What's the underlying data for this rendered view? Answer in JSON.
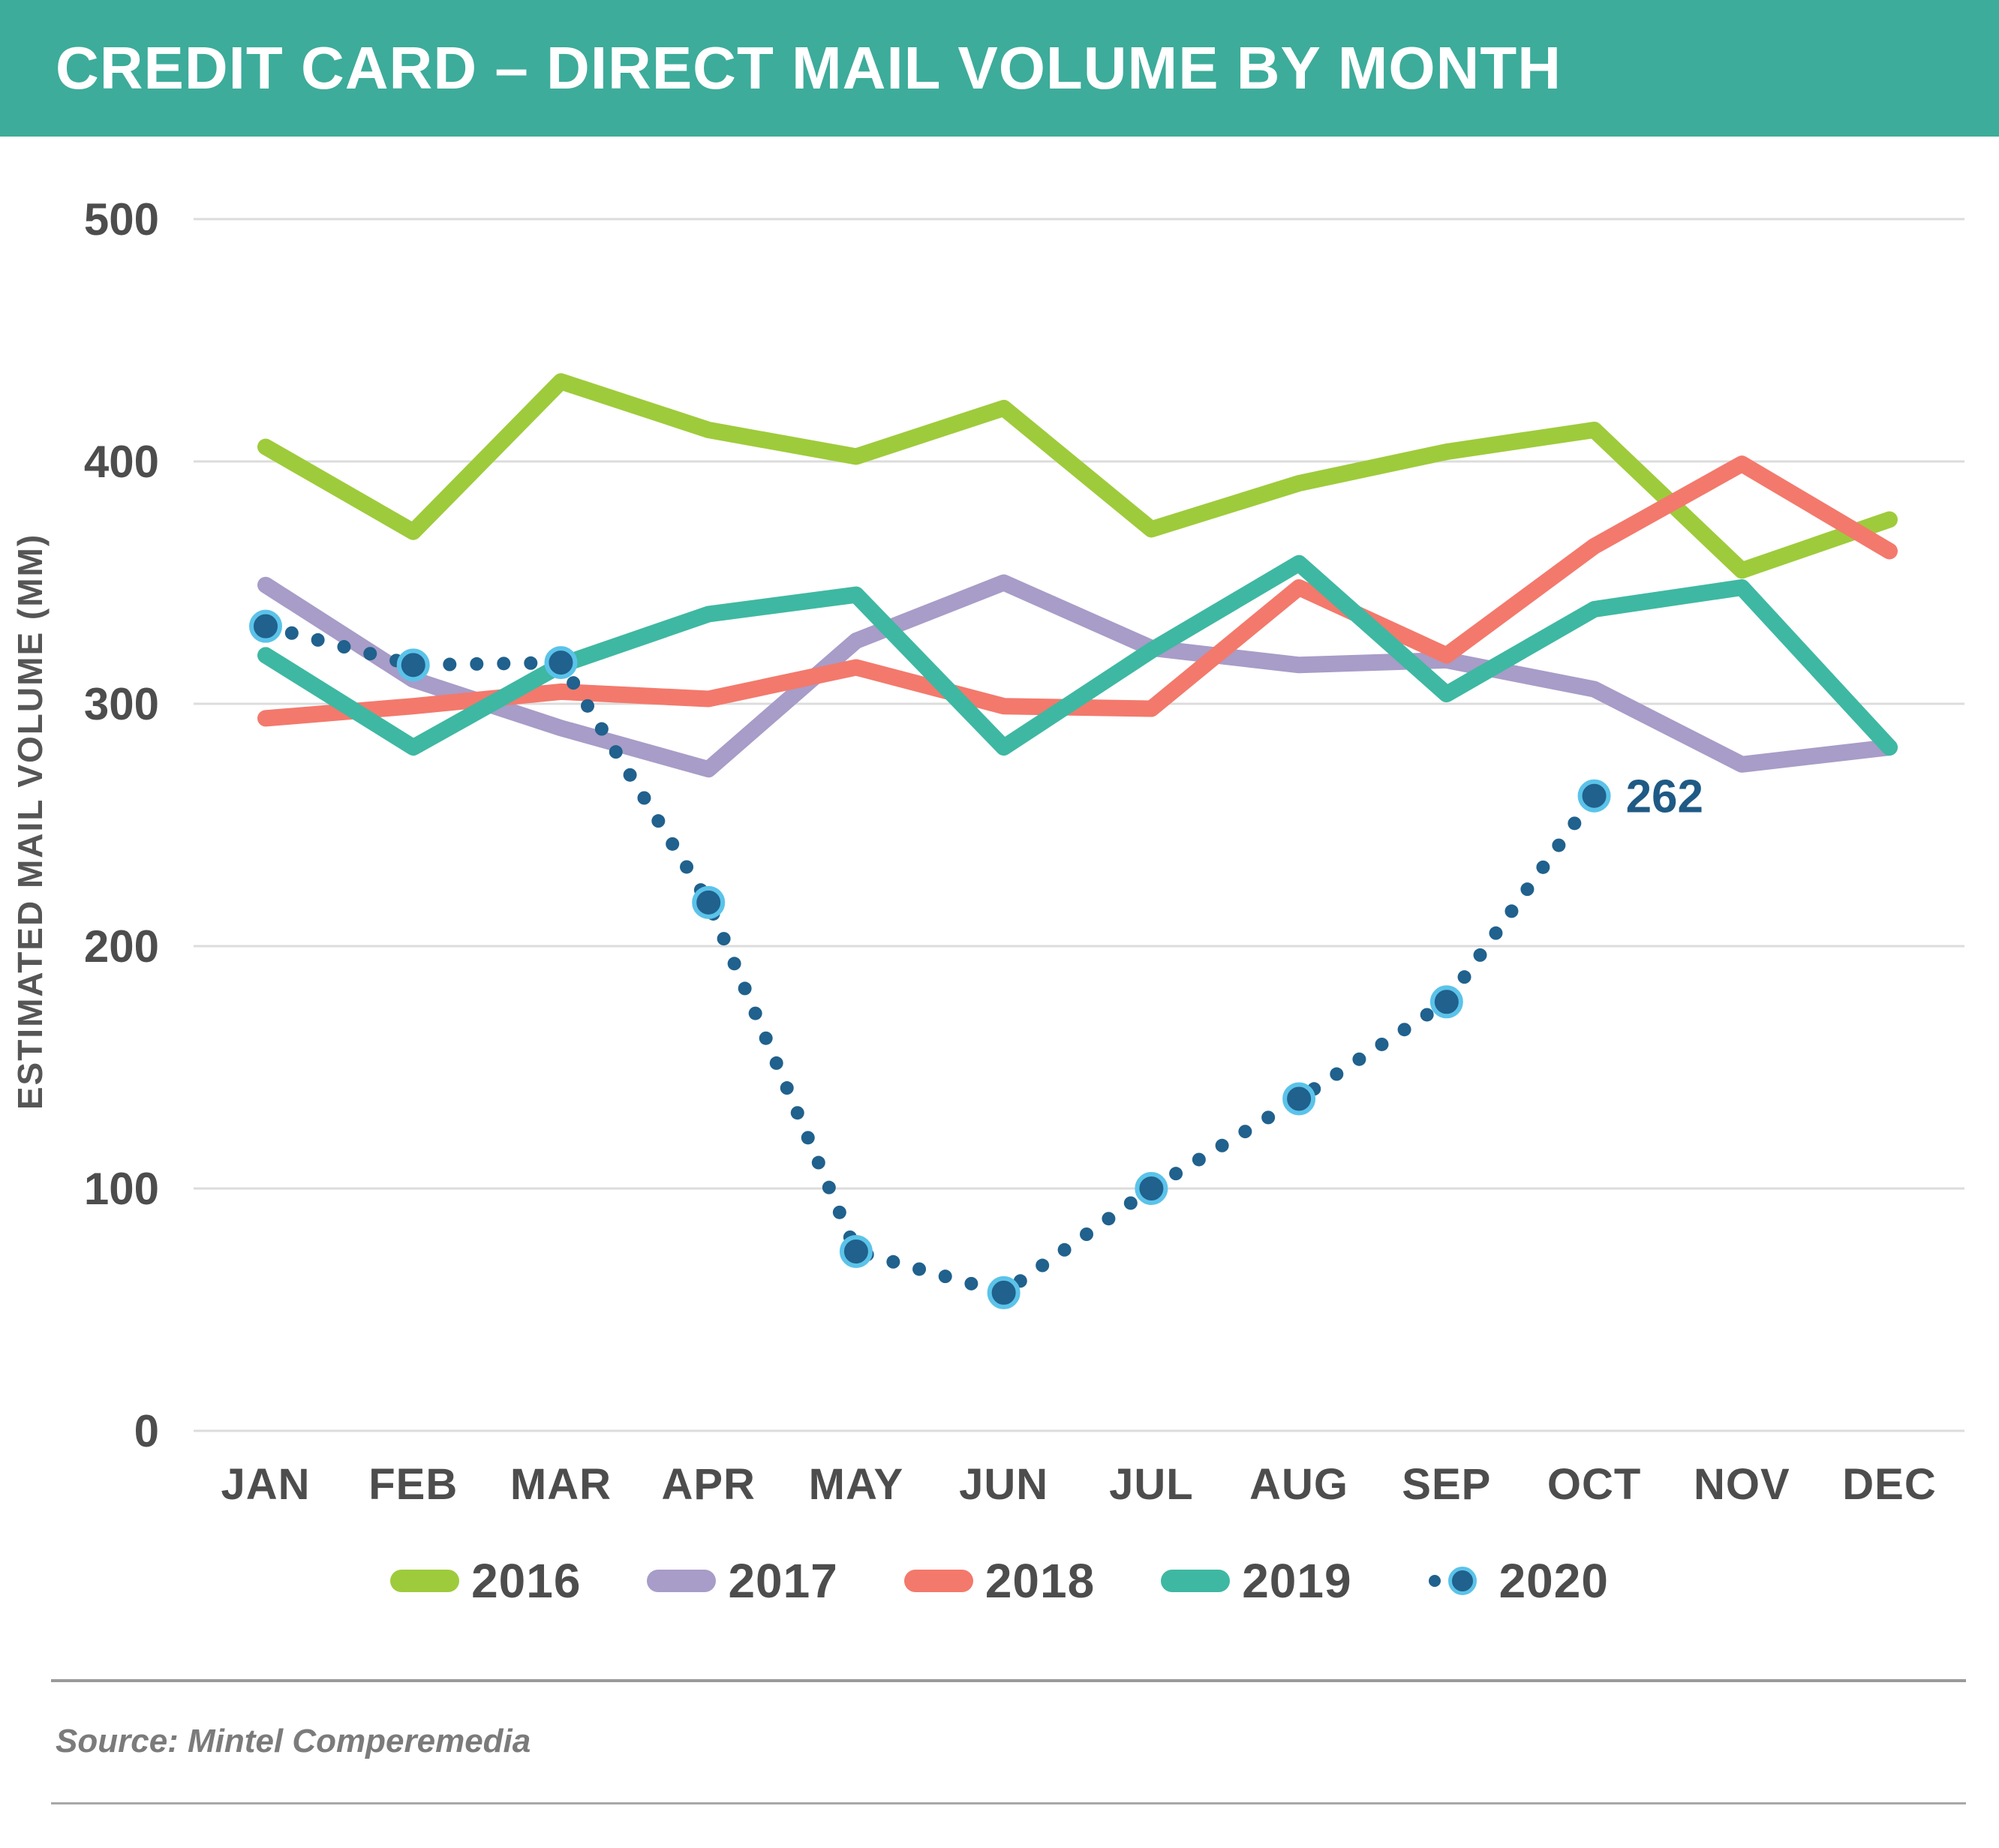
{
  "header": {
    "title": "CREDIT CARD – DIRECT MAIL VOLUME BY MONTH",
    "background_color": "#3DAC9A"
  },
  "chart_data": {
    "type": "line",
    "title": "CREDIT CARD – DIRECT MAIL VOLUME BY MONTH",
    "xlabel": "",
    "ylabel": "ESTIMATED MAIL VOLUME (MM)",
    "ylim": [
      0,
      500
    ],
    "yticks": [
      0,
      100,
      200,
      300,
      400,
      500
    ],
    "grid": true,
    "legend_position": "bottom",
    "categories": [
      "JAN",
      "FEB",
      "MAR",
      "APR",
      "MAY",
      "JUN",
      "JUL",
      "AUG",
      "SEP",
      "OCT",
      "NOV",
      "DEC"
    ],
    "series": [
      {
        "name": "2016",
        "style": "solid",
        "color": "#9ECB3B",
        "values": [
          406,
          371,
          433,
          413,
          402,
          422,
          372,
          391,
          404,
          413,
          355,
          376
        ]
      },
      {
        "name": "2017",
        "style": "solid",
        "color": "#A89CC8",
        "values": [
          349,
          310,
          290,
          273,
          326,
          350,
          323,
          316,
          318,
          306,
          275,
          282
        ]
      },
      {
        "name": "2018",
        "style": "solid",
        "color": "#F3796C",
        "values": [
          294,
          299,
          305,
          302,
          315,
          299,
          298,
          348,
          320,
          365,
          399,
          363
        ]
      },
      {
        "name": "2019",
        "style": "solid",
        "color": "#3EB8A2",
        "values": [
          320,
          282,
          316,
          337,
          345,
          282,
          322,
          358,
          304,
          339,
          348,
          282
        ]
      },
      {
        "name": "2020",
        "style": "dotted",
        "color": "#20618D",
        "marker_ring_color": "#5BC3E9",
        "values": [
          332,
          316,
          317,
          218,
          74,
          57,
          100,
          137,
          177,
          262,
          null,
          null
        ]
      }
    ],
    "annotation": {
      "text": "262",
      "series": "2020",
      "month": "OCT",
      "color": "#1F5A85"
    },
    "axis_text_color": "#4D4D4D",
    "grid_color": "#DCDCDC"
  },
  "source": {
    "text": "Source: Mintel Comperemedia"
  }
}
